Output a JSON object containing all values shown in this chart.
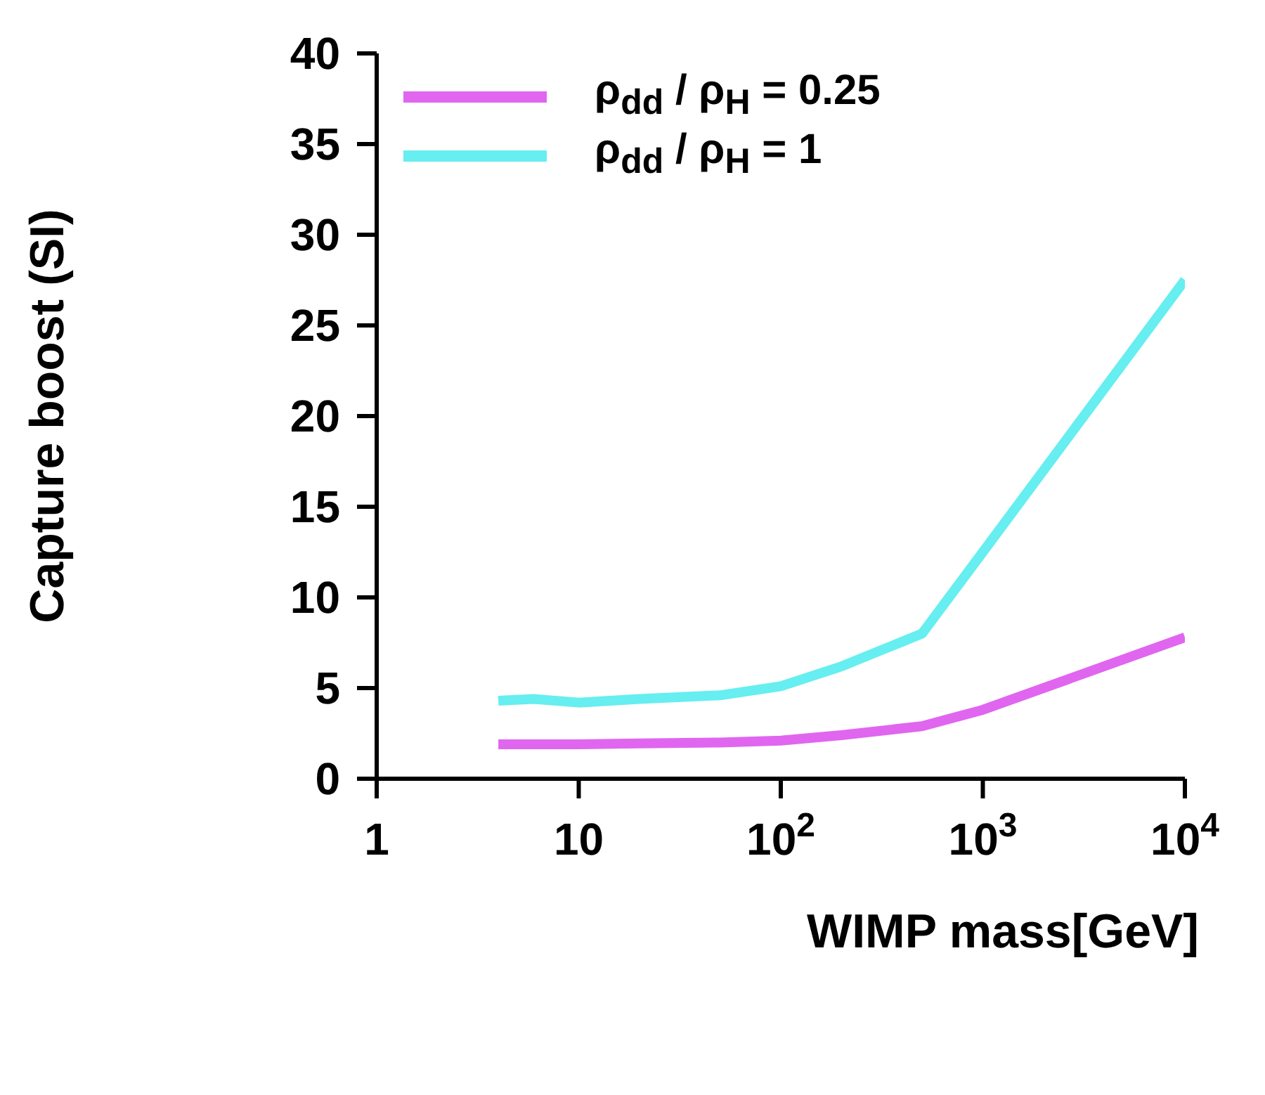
{
  "chart_data": {
    "type": "line",
    "xlabel": "WIMP mass[GeV]",
    "ylabel": "Capture boost (SI)",
    "log": "x",
    "xlim": [
      1,
      10000
    ],
    "xticks": [
      1,
      10,
      {
        "value": 100,
        "label": "10$^{2}$"
      },
      {
        "value": 1000,
        "label": "10$^{3}$"
      },
      {
        "value": 10000,
        "label": "10$^{4}$"
      }
    ],
    "ylim": [
      0,
      40
    ],
    "yticks": [
      0,
      5,
      10,
      15,
      20,
      25,
      30,
      35,
      40
    ],
    "legend": "top left",
    "marker": "none",
    "line_style": "solid",
    "series": [
      {
        "name": "ρ$_{dd}$ / ρ$_{H}$ = 0.25",
        "color": "#e066f0",
        "x": [
          4,
          10,
          20,
          50,
          100,
          200,
          500,
          1000,
          10000
        ],
        "values": [
          1.9,
          1.9,
          1.95,
          2.0,
          2.1,
          2.4,
          2.9,
          3.8,
          7.8
        ]
      },
      {
        "name": "ρ$_{dd}$ / ρ$_{H}$ = 1",
        "color": "#66eef0",
        "x": [
          4,
          6,
          10,
          20,
          50,
          100,
          200,
          500,
          1000,
          10000
        ],
        "values": [
          4.3,
          4.4,
          4.2,
          4.4,
          4.6,
          5.1,
          6.2,
          8.0,
          12.5,
          27.5
        ]
      }
    ]
  }
}
